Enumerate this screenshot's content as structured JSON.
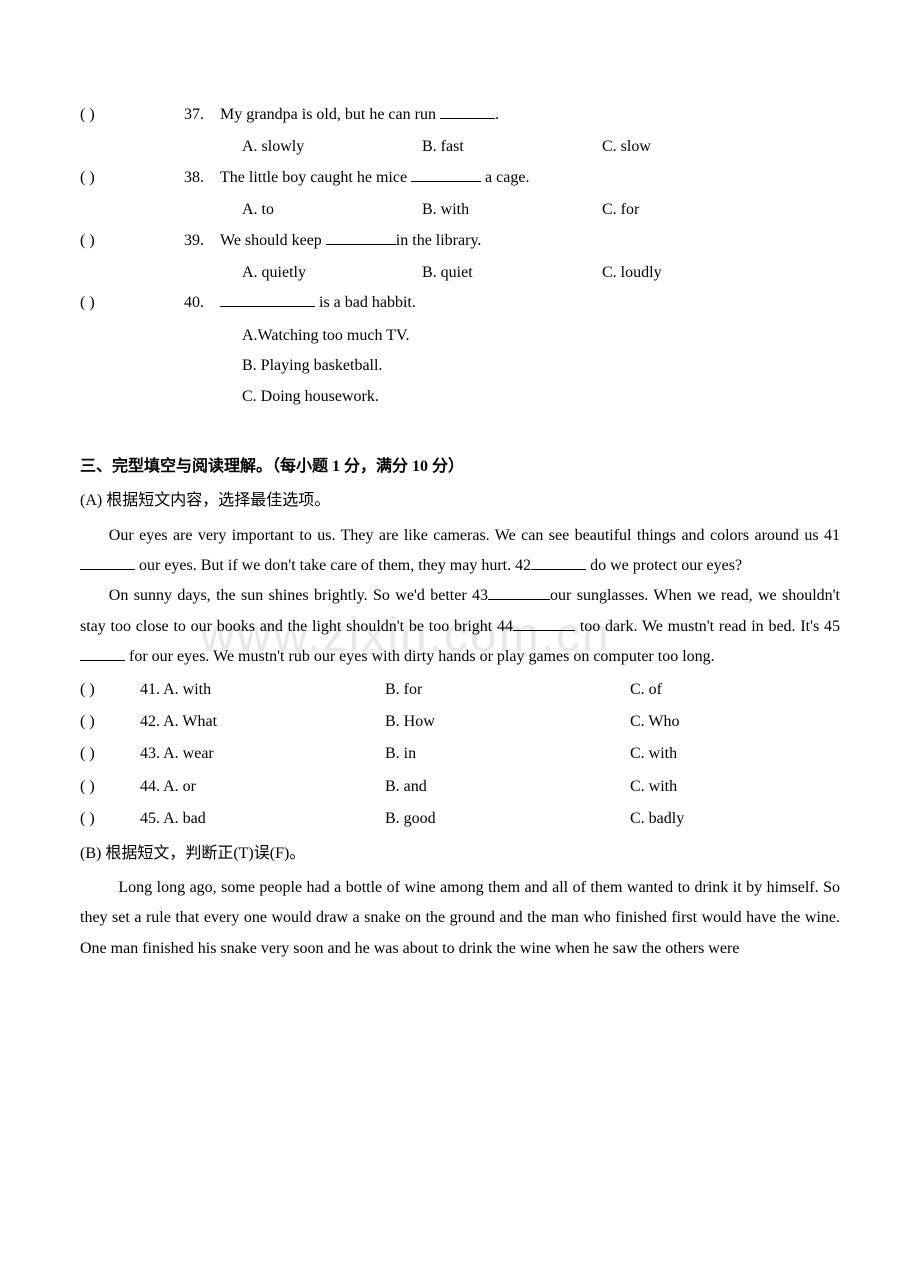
{
  "watermark": "www.zixin.com.cn",
  "mc_questions": [
    {
      "num": "37.",
      "stem_pre": "My grandpa is old, but he can run ",
      "stem_post": ".",
      "blank": "short",
      "opts": {
        "a": "A. slowly",
        "b": "B. fast",
        "c": "C. slow"
      },
      "multiline_opts": false
    },
    {
      "num": "38.",
      "stem_pre": "The little boy caught he mice ",
      "stem_post": " a cage.",
      "blank": "med",
      "opts": {
        "a": "A. to",
        "b": "B. with",
        "c": "C. for"
      },
      "multiline_opts": false
    },
    {
      "num": "39.",
      "stem_pre": "We should keep  ",
      "stem_post": "in the library.",
      "blank": "med",
      "opts": {
        "a": "A. quietly",
        "b": "B. quiet",
        "c": "C. loudly"
      },
      "multiline_opts": false
    },
    {
      "num": "40.",
      "stem_pre": "",
      "stem_post": "  is a bad habbit.",
      "blank": "long",
      "opts": {
        "a": "A.Watching too much TV.",
        "b": "B. Playing basketball.",
        "c": "C. Doing housework."
      },
      "multiline_opts": true
    }
  ],
  "section3_title": "三、完型填空与阅读理解。（每小题 1 分，满分 10 分）",
  "partA_inst": "(A) 根据短文内容，选择最佳选项。",
  "passageA": {
    "p1_pre": "Our eyes are very important to us. They are like cameras. We can see beautiful things and colors around us 41",
    "p1_mid1": " our eyes. But if we don't take care of them, they may hurt. 42",
    "p1_post": " do we protect our eyes?",
    "p2_pre": "On sunny days, the sun shines brightly. So we'd better 43",
    "p2_mid1": "our sunglasses. When we read, we shouldn't stay too close to our books and the light shouldn't be too bright 44",
    "p2_mid2": " too dark. We mustn't read in bed. It's 45",
    "p2_post": " for our eyes. We mustn't rub our eyes with dirty hands or play games on computer too long."
  },
  "cloze_opts": [
    {
      "num": "41.",
      "a": "A. with",
      "b": "B. for",
      "c": "C. of"
    },
    {
      "num": "42.",
      "a": "A. What",
      "b": "B. How",
      "c": "C. Who"
    },
    {
      "num": "43.",
      "a": "A. wear",
      "b": "B. in",
      "c": "C. with"
    },
    {
      "num": "44.",
      "a": "A. or",
      "b": "B. and",
      "c": "C. with"
    },
    {
      "num": "45.",
      "a": "A. bad",
      "b": "B. good",
      "c": "C. badly"
    }
  ],
  "partB_inst": "(B) 根据短文，判断正(T)误(F)。",
  "passageB": {
    "p1": "Long long ago, some people had a bottle of wine among them and all of them wanted to drink it by himself. So they set a rule that every one would draw a snake on the ground and the man who finished first would have the wine. One man finished his snake very soon and he was about to drink the wine when he saw the others were"
  }
}
